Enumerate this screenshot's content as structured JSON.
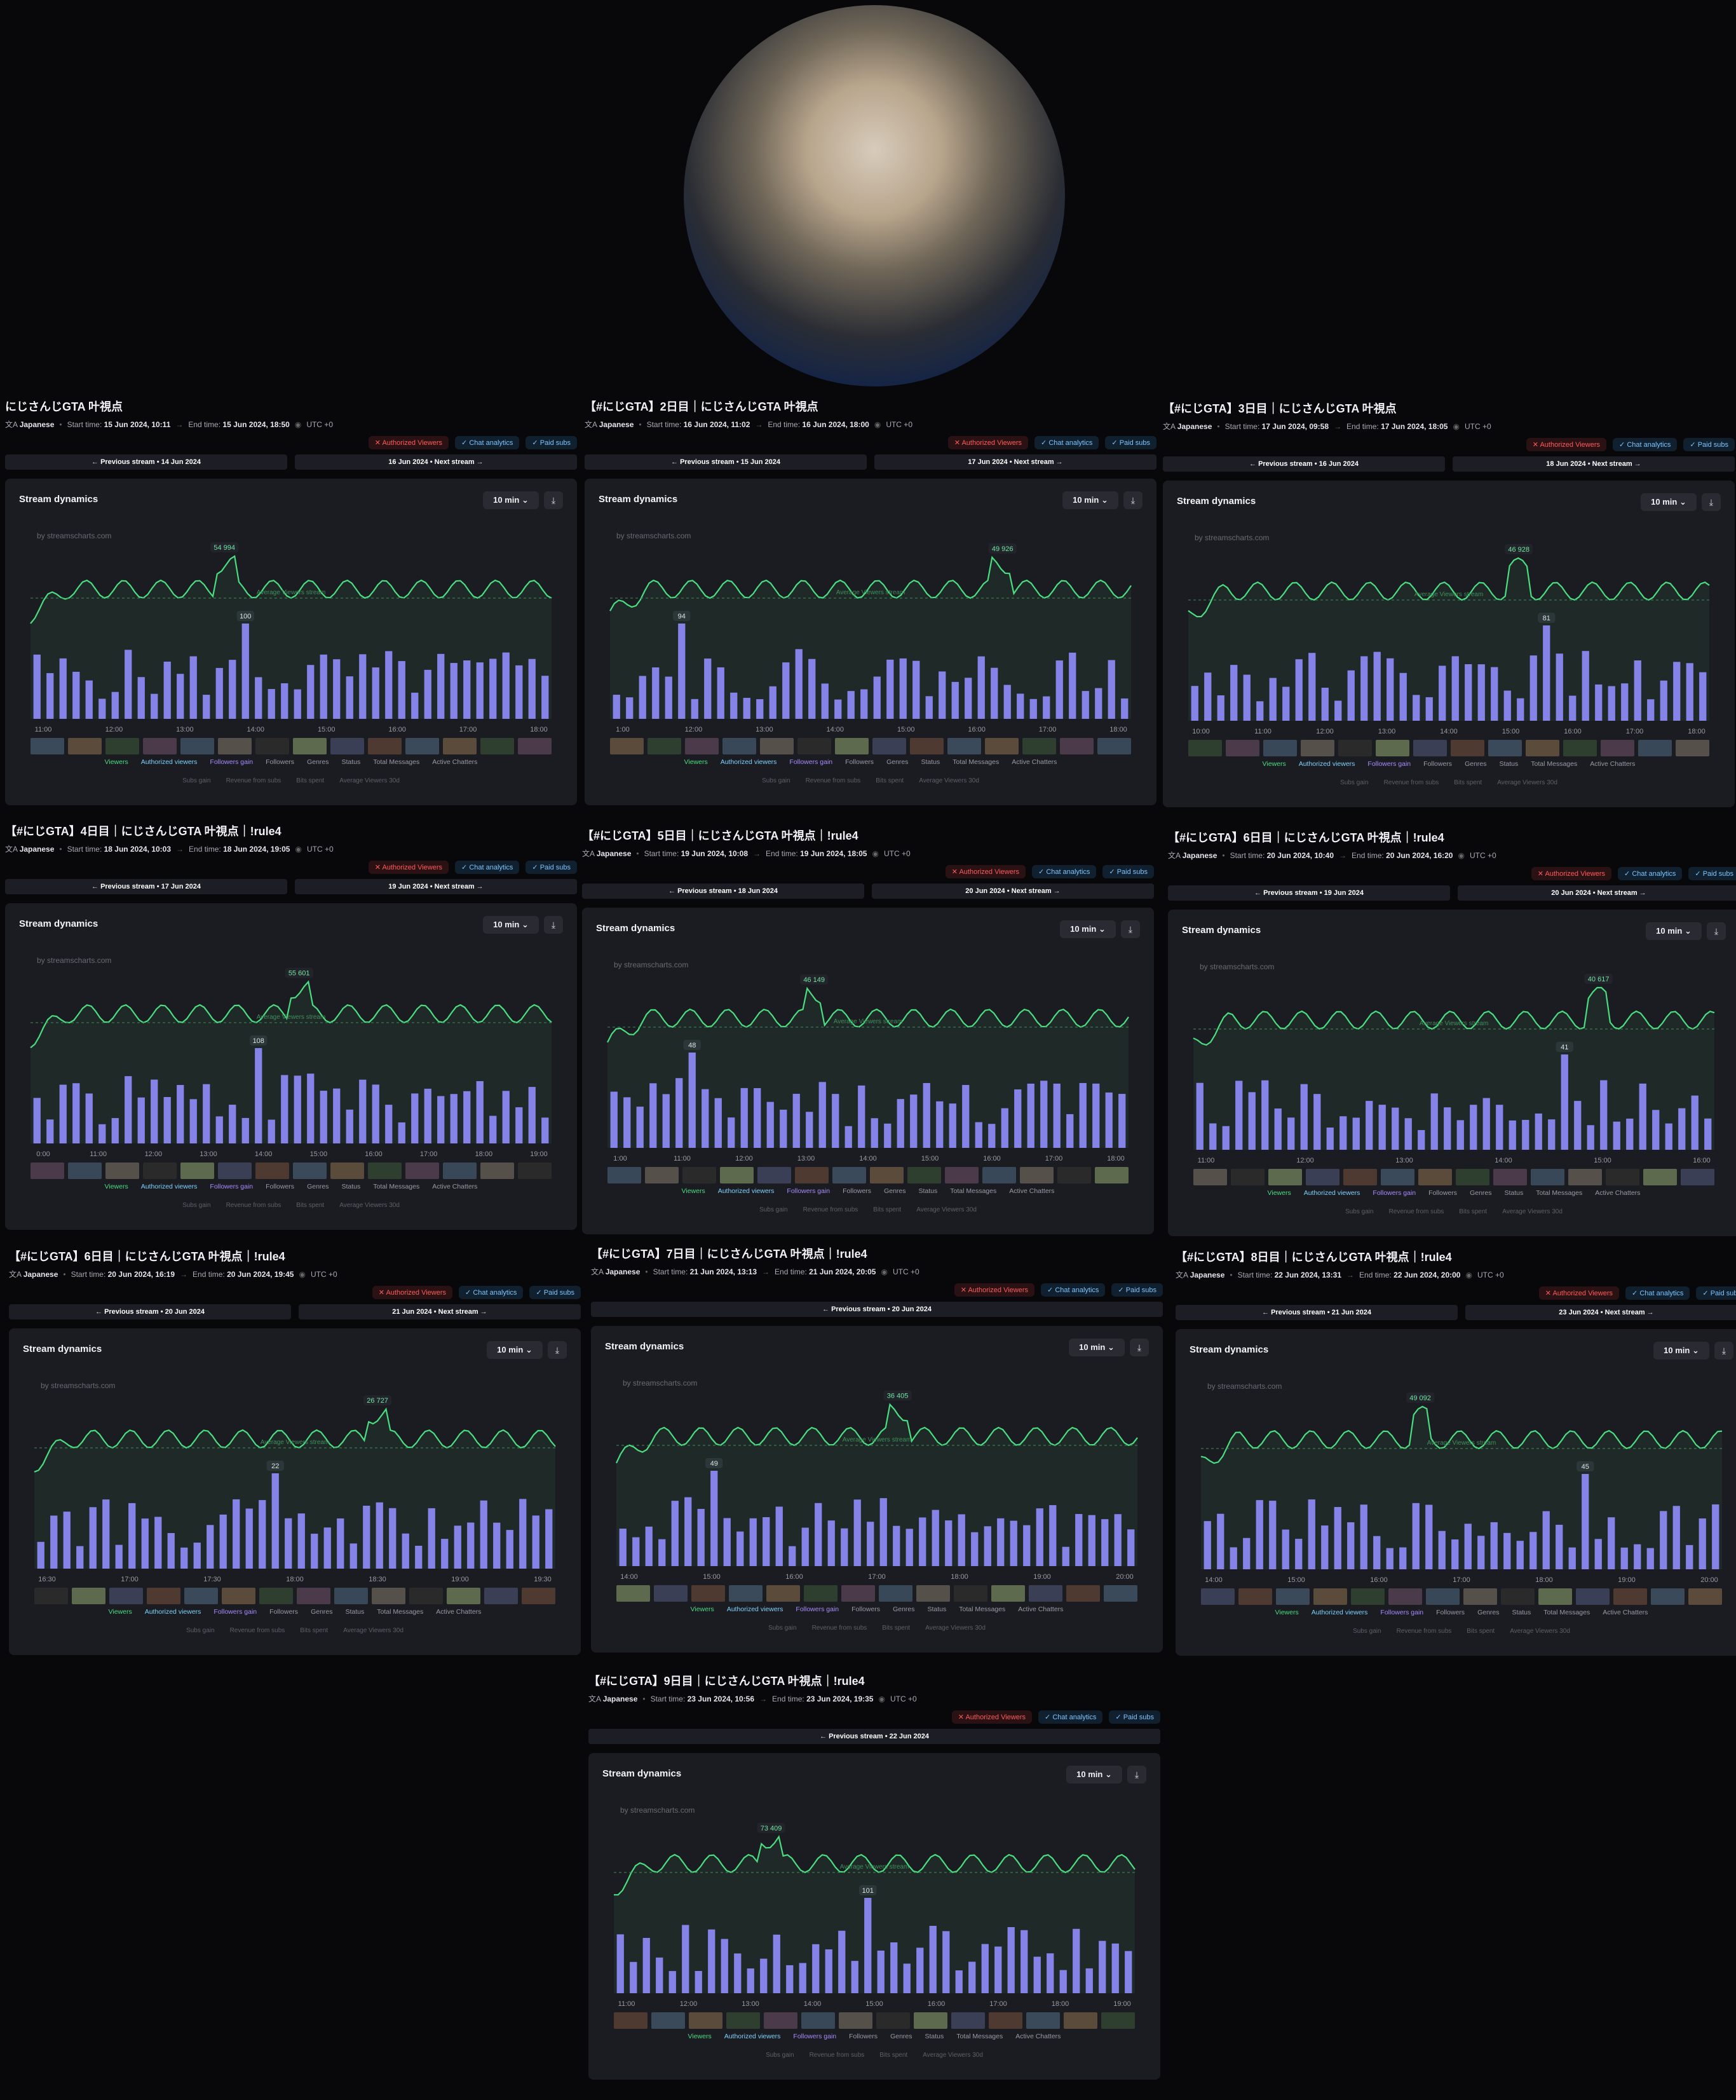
{
  "meta_labels": {
    "start": "Start time:",
    "end": "End time:",
    "language": "Japanese",
    "tz": "UTC +0"
  },
  "tag_labels": {
    "auth": "Authorized Viewers",
    "chat": "Chat analytics",
    "subs": "Paid subs"
  },
  "card_labels": {
    "title": "Stream dynamics",
    "interval": "10 min",
    "watermark": "by streamscharts.com",
    "avg": "Average Viewers stream"
  },
  "legend": [
    "Viewers",
    "Authorized viewers",
    "Followers gain",
    "Followers",
    "Genres",
    "Status",
    "Total Messages",
    "Active Chatters"
  ],
  "legend2": [
    "Subs gain",
    "Revenue from subs",
    "Bits spent",
    "Average Viewers 30d"
  ],
  "colors": {
    "line": "#4ade80",
    "bar": "#8b7cf0",
    "bg": "#1b1b22",
    "badge": "#f5c518"
  },
  "streams": [
    {
      "title": "にじさんじGTA 叶視点",
      "start": "15 Jun 2024, 10:11",
      "end": "15 Jun 2024, 18:50",
      "prev": "Previous stream • 14 Jun 2024",
      "next": "16 Jun 2024 • Next stream",
      "peak": "54 994",
      "bar_peak": "100",
      "chart_data": {
        "type": "line",
        "xticks": [
          "11:00",
          "12:00",
          "13:00",
          "14:00",
          "15:00",
          "16:00",
          "17:00",
          "18:00"
        ],
        "series": [
          {
            "name": "Viewers",
            "peak": 54994
          },
          {
            "name": "Followers gain",
            "peak": 100
          }
        ]
      }
    },
    {
      "title": "【#にじGTA】2日目｜にじさんじGTA 叶視点",
      "start": "16 Jun 2024, 11:02",
      "end": "16 Jun 2024, 18:00",
      "prev": "Previous stream • 15 Jun 2024",
      "next": "17 Jun 2024 • Next stream",
      "peak": "49 926",
      "bar_peak": "94",
      "chart_data": {
        "type": "line",
        "xticks": [
          "1:00",
          "12:00",
          "13:00",
          "14:00",
          "15:00",
          "16:00",
          "17:00",
          "18:00"
        ],
        "series": [
          {
            "name": "Viewers",
            "peak": 49926
          },
          {
            "name": "Followers gain",
            "peak": 94
          }
        ]
      }
    },
    {
      "title": "【#にじGTA】3日目｜にじさんじGTA 叶視点",
      "start": "17 Jun 2024, 09:58",
      "end": "17 Jun 2024, 18:05",
      "prev": "Previous stream • 16 Jun 2024",
      "next": "18 Jun 2024 • Next stream",
      "peak": "46 928",
      "bar_peak": "81",
      "chart_data": {
        "type": "line",
        "xticks": [
          "10:00",
          "11:00",
          "12:00",
          "13:00",
          "14:00",
          "15:00",
          "16:00",
          "17:00",
          "18:00"
        ],
        "series": [
          {
            "name": "Viewers",
            "peak": 46928
          },
          {
            "name": "Followers gain",
            "peak": 81
          }
        ]
      }
    },
    {
      "title": "【#にじGTA】4日目｜にじさんじGTA 叶視点｜!rule4",
      "start": "18 Jun 2024, 10:03",
      "end": "18 Jun 2024, 19:05",
      "prev": "Previous stream • 17 Jun 2024",
      "next": "19 Jun 2024 • Next stream",
      "peak": "55 601",
      "bar_peak": "108",
      "chart_data": {
        "type": "line",
        "xticks": [
          "0:00",
          "11:00",
          "12:00",
          "13:00",
          "14:00",
          "15:00",
          "16:00",
          "17:00",
          "18:00",
          "19:00"
        ],
        "series": [
          {
            "name": "Viewers",
            "peak": 55601
          },
          {
            "name": "Followers gain",
            "peak": 108
          }
        ]
      }
    },
    {
      "title": "【#にじGTA】5日目｜にじさんじGTA 叶視点｜!rule4",
      "start": "19 Jun 2024, 10:08",
      "end": "19 Jun 2024, 18:05",
      "prev": "Previous stream • 18 Jun 2024",
      "next": "20 Jun 2024 • Next stream",
      "peak": "46 149",
      "bar_peak": "48",
      "chart_data": {
        "type": "line",
        "xticks": [
          "1:00",
          "11:00",
          "12:00",
          "13:00",
          "14:00",
          "15:00",
          "16:00",
          "17:00",
          "18:00"
        ],
        "series": [
          {
            "name": "Viewers",
            "peak": 46149
          },
          {
            "name": "Followers gain",
            "peak": 48
          }
        ]
      }
    },
    {
      "title": "【#にじGTA】6日目｜にじさんじGTA 叶視点｜!rule4",
      "start": "20 Jun 2024, 10:40",
      "end": "20 Jun 2024, 16:20",
      "prev": "Previous stream • 19 Jun 2024",
      "next": "20 Jun 2024 • Next stream",
      "peak": "40 617",
      "bar_peak": "41",
      "chart_data": {
        "type": "line",
        "xticks": [
          "11:00",
          "12:00",
          "13:00",
          "14:00",
          "15:00",
          "16:00"
        ],
        "series": [
          {
            "name": "Viewers",
            "peak": 40617
          },
          {
            "name": "Followers gain",
            "peak": 41
          }
        ]
      }
    },
    {
      "title": "【#にじGTA】6日目｜にじさんじGTA 叶視点｜!rule4",
      "start": "20 Jun 2024, 16:19",
      "end": "20 Jun 2024, 19:45",
      "prev": "Previous stream • 20 Jun 2024",
      "next": "21 Jun 2024 • Next stream",
      "peak": "26 727",
      "bar_peak": "22",
      "chart_data": {
        "type": "line",
        "xticks": [
          "16:30",
          "17:00",
          "17:30",
          "18:00",
          "18:30",
          "19:00",
          "19:30"
        ],
        "series": [
          {
            "name": "Viewers",
            "peak": 26727
          },
          {
            "name": "Followers gain",
            "peak": 22
          }
        ]
      }
    },
    {
      "title": "【#にじGTA】7日目｜にじさんじGTA 叶視点｜!rule4",
      "start": "21 Jun 2024, 13:13",
      "end": "21 Jun 2024, 20:05",
      "prev": "Previous stream • 20 Jun 2024",
      "next": "",
      "peak": "36 405",
      "bar_peak": "49",
      "chart_data": {
        "type": "line",
        "xticks": [
          "14:00",
          "15:00",
          "16:00",
          "17:00",
          "18:00",
          "19:00",
          "20:00"
        ],
        "series": [
          {
            "name": "Viewers",
            "peak": 36405
          },
          {
            "name": "Followers gain",
            "peak": 49
          }
        ]
      }
    },
    {
      "title": "【#にじGTA】8日目｜にじさんじGTA 叶視点｜!rule4",
      "start": "22 Jun 2024, 13:31",
      "end": "22 Jun 2024, 20:00",
      "prev": "Previous stream • 21 Jun 2024",
      "next": "23 Jun 2024 • Next stream",
      "peak": "49 092",
      "bar_peak": "45",
      "chart_data": {
        "type": "line",
        "xticks": [
          "14:00",
          "15:00",
          "16:00",
          "17:00",
          "18:00",
          "19:00",
          "20:00"
        ],
        "series": [
          {
            "name": "Viewers",
            "peak": 49092
          },
          {
            "name": "Followers gain",
            "peak": 45
          }
        ]
      }
    },
    {
      "title": "【#にじGTA】9日目｜にじさんじGTA 叶視点｜!rule4",
      "start": "23 Jun 2024, 10:56",
      "end": "23 Jun 2024, 19:35",
      "prev": "Previous stream • 22 Jun 2024",
      "next": "",
      "peak": "73 409",
      "bar_peak": "101",
      "chart_data": {
        "type": "line",
        "xticks": [
          "11:00",
          "12:00",
          "13:00",
          "14:00",
          "15:00",
          "16:00",
          "17:00",
          "18:00",
          "19:00"
        ],
        "series": [
          {
            "name": "Viewers",
            "peak": 73409
          },
          {
            "name": "Followers gain",
            "peak": 101
          }
        ]
      }
    }
  ]
}
